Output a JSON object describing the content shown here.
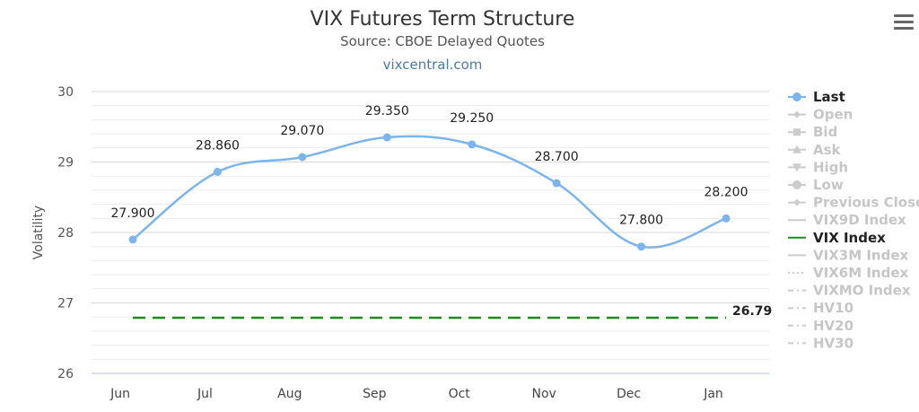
{
  "header": {
    "title": "VIX Futures Term Structure",
    "subtitle": "Source: CBOE Delayed Quotes",
    "credit": "vixcentral.com"
  },
  "menu": {
    "icon": "hamburger-menu-icon"
  },
  "chart_data": {
    "type": "line",
    "title": "VIX Futures Term Structure",
    "subtitle": "Source: CBOE Delayed Quotes",
    "xlabel": "",
    "ylabel": "Volatility",
    "ylim": [
      26,
      30
    ],
    "yticks": [
      "30",
      "29",
      "28",
      "27",
      "26"
    ],
    "grid": true,
    "categories": [
      "Jun",
      "Jul",
      "Aug",
      "Sep",
      "Oct",
      "Nov",
      "Dec",
      "Jan"
    ],
    "series": [
      {
        "name": "Last",
        "color": "#7cb5ec",
        "values": [
          27.9,
          28.86,
          29.07,
          29.35,
          29.25,
          28.7,
          27.8,
          28.2
        ],
        "labels": [
          "27.900",
          "28.860",
          "29.070",
          "29.350",
          "29.250",
          "28.700",
          "27.800",
          "28.200"
        ]
      },
      {
        "name": "VIX Index",
        "color": "#1f8a1f",
        "dash": "dashed",
        "value": 26.79,
        "label": "26.79"
      }
    ],
    "legend": {
      "placement": "right",
      "items": [
        {
          "name": "Last",
          "active": true,
          "marker": "circle"
        },
        {
          "name": "Open",
          "active": false,
          "marker": "diamond"
        },
        {
          "name": "Bid",
          "active": false,
          "marker": "square"
        },
        {
          "name": "Ask",
          "active": false,
          "marker": "triangle"
        },
        {
          "name": "High",
          "active": false,
          "marker": "triangle-down"
        },
        {
          "name": "Low",
          "active": false,
          "marker": "circle"
        },
        {
          "name": "Previous Close",
          "active": false,
          "marker": "diamond"
        },
        {
          "name": "VIX9D Index",
          "active": false,
          "marker": "solid"
        },
        {
          "name": "VIX Index",
          "active": true,
          "marker": "solid"
        },
        {
          "name": "VIX3M Index",
          "active": false,
          "marker": "solid"
        },
        {
          "name": "VIX6M Index",
          "active": false,
          "marker": "dotted"
        },
        {
          "name": "VIXMO Index",
          "active": false,
          "marker": "dash-dot"
        },
        {
          "name": "HV10",
          "active": false,
          "marker": "dash-dot"
        },
        {
          "name": "HV20",
          "active": false,
          "marker": "dash-dot"
        },
        {
          "name": "HV30",
          "active": false,
          "marker": "dash-dot"
        }
      ]
    }
  }
}
